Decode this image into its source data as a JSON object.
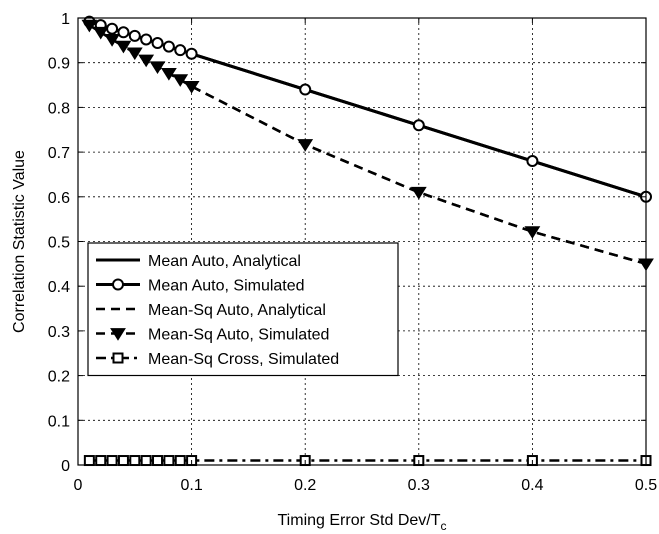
{
  "chart_data": {
    "type": "line",
    "xlabel": "Timing Error Std Dev/T",
    "xlabel_subscript": "c",
    "ylabel": "Correlation Statistic Value",
    "xlim": [
      0,
      0.5
    ],
    "ylim": [
      0,
      1
    ],
    "xticks": [
      "0",
      "0.1",
      "0.2",
      "0.3",
      "0.4",
      "0.5"
    ],
    "yticks": [
      "0",
      "0.1",
      "0.2",
      "0.3",
      "0.4",
      "0.5",
      "0.6",
      "0.7",
      "0.8",
      "0.9",
      "1"
    ],
    "grid": true,
    "legend_position": "center-left",
    "x": [
      0.01,
      0.02,
      0.03,
      0.04,
      0.05,
      0.06,
      0.07,
      0.08,
      0.09,
      0.1,
      0.2,
      0.3,
      0.4,
      0.5
    ],
    "series": [
      {
        "name": "Mean Auto, Analytical",
        "style": "solid",
        "marker": "none",
        "values": [
          0.992,
          0.984,
          0.976,
          0.968,
          0.96,
          0.952,
          0.944,
          0.936,
          0.928,
          0.92,
          0.84,
          0.76,
          0.68,
          0.6
        ]
      },
      {
        "name": "Mean Auto, Simulated",
        "style": "solid",
        "marker": "circle",
        "values": [
          0.992,
          0.984,
          0.976,
          0.968,
          0.96,
          0.952,
          0.944,
          0.936,
          0.928,
          0.92,
          0.84,
          0.76,
          0.68,
          0.6
        ]
      },
      {
        "name": "Mean-Sq Auto, Analytical",
        "style": "dashed",
        "marker": "none",
        "values": [
          0.984,
          0.968,
          0.952,
          0.937,
          0.922,
          0.906,
          0.891,
          0.876,
          0.862,
          0.847,
          0.717,
          0.61,
          0.522,
          0.45
        ]
      },
      {
        "name": "Mean-Sq Auto, Simulated",
        "style": "dashed",
        "marker": "triangle-down",
        "values": [
          0.984,
          0.968,
          0.952,
          0.937,
          0.922,
          0.906,
          0.891,
          0.876,
          0.862,
          0.847,
          0.717,
          0.61,
          0.522,
          0.45
        ]
      },
      {
        "name": "Mean-Sq Cross, Simulated",
        "style": "dashdot",
        "marker": "square",
        "values": [
          0.01,
          0.01,
          0.01,
          0.01,
          0.01,
          0.01,
          0.01,
          0.01,
          0.01,
          0.01,
          0.01,
          0.01,
          0.01,
          0.01
        ]
      }
    ]
  }
}
